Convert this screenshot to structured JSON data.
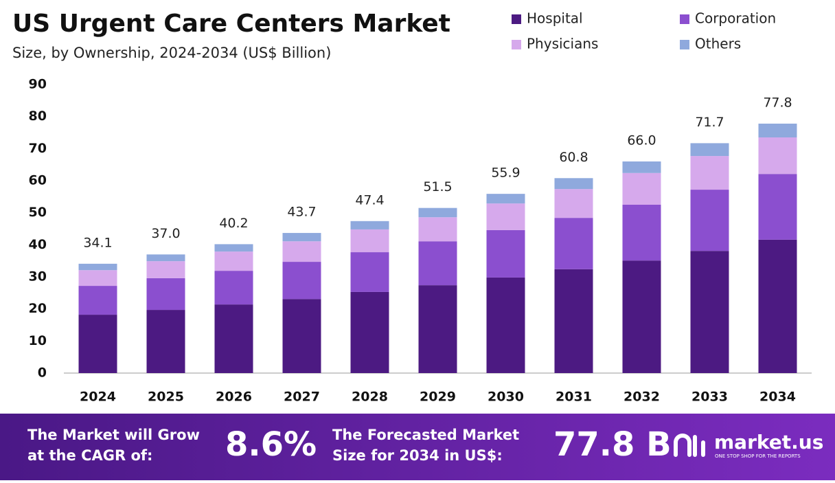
{
  "chart_data": {
    "type": "stacked_bar",
    "title": "US Urgent Care Centers Market",
    "subtitle": "Size, by Ownership, 2024-2034 (US$ Billion)",
    "categories": [
      "2024",
      "2025",
      "2026",
      "2027",
      "2028",
      "2029",
      "2030",
      "2031",
      "2032",
      "2033",
      "2034"
    ],
    "series": [
      {
        "name": "Hospital",
        "color": "#4c1a82",
        "values": [
          18.2,
          19.7,
          21.4,
          23.1,
          25.3,
          27.4,
          29.8,
          32.4,
          35.1,
          38.1,
          41.6
        ]
      },
      {
        "name": "Corporation",
        "color": "#8b4fcf",
        "values": [
          9.0,
          9.9,
          10.5,
          11.6,
          12.4,
          13.7,
          14.8,
          16.0,
          17.4,
          19.1,
          20.5
        ]
      },
      {
        "name": "Physicians",
        "color": "#d6a9ec",
        "values": [
          4.9,
          5.3,
          6.0,
          6.4,
          7.1,
          7.5,
          8.3,
          9.0,
          9.9,
          10.5,
          11.4
        ]
      },
      {
        "name": "Others",
        "color": "#8fa9dd",
        "values": [
          2.0,
          2.1,
          2.3,
          2.6,
          2.6,
          2.9,
          3.0,
          3.4,
          3.6,
          4.0,
          4.3
        ]
      }
    ],
    "totals": [
      34.1,
      37.0,
      40.2,
      43.7,
      47.4,
      51.5,
      55.9,
      60.8,
      66.0,
      71.7,
      77.8
    ],
    "total_labels": [
      "34.1",
      "37.0",
      "40.2",
      "43.7",
      "47.4",
      "51.5",
      "55.9",
      "60.8",
      "66.0",
      "71.7",
      "77.8"
    ],
    "ylim": [
      0,
      90
    ],
    "yticks": [
      0,
      10,
      20,
      30,
      40,
      50,
      60,
      70,
      80,
      90
    ],
    "grid": false
  },
  "footer": {
    "cagr_text": [
      "The Market will Grow",
      "at the CAGR of:"
    ],
    "cagr_value": "8.6%",
    "forecast_text": [
      "The Forecasted Market",
      "Size for 2034 in US$:"
    ],
    "forecast_value": "77.8 B",
    "brand": "market.us",
    "tagline": "ONE STOP SHOP FOR THE REPORTS"
  }
}
